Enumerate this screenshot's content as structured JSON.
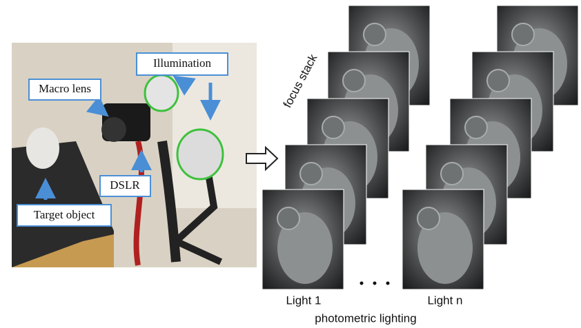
{
  "setup_photo": {
    "labels": {
      "illumination": "Illumination",
      "macro_lens": "Macro lens",
      "dslr": "DSLR",
      "target_object": "Target object"
    }
  },
  "focus_stack_label": "focus stack",
  "light_labels": [
    "Light 1",
    "Light n"
  ],
  "caption": "photometric lighting"
}
